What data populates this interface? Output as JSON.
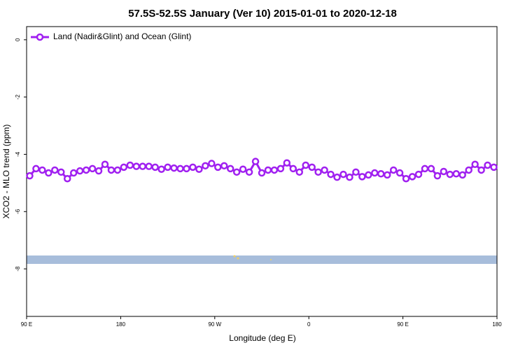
{
  "chart_data": {
    "type": "line",
    "title": "57.5S-52.5S January (Ver 10)   2015-01-01 to 2020-12-18",
    "xlabel": "Longitude (deg E)",
    "ylabel": "XCO2 - MLO trend (ppm)",
    "xlim": [
      90,
      540
    ],
    "ylim": [
      -9.66,
      0.46
    ],
    "xticks": [
      {
        "value": 90,
        "label": "90 E"
      },
      180,
      {
        "value": 270,
        "label": "90 W"
      },
      {
        "value": 360,
        "label": "0"
      },
      {
        "value": 450,
        "label": "90 E"
      },
      {
        "value": 540,
        "label": "180"
      }
    ],
    "yticks": [
      0,
      -2,
      -4,
      -6,
      -8
    ],
    "legend": "top-left",
    "x": [
      93,
      99,
      105,
      111,
      117,
      123,
      129,
      135,
      141,
      147,
      153,
      159,
      165,
      171,
      177,
      183,
      189,
      195,
      201,
      207,
      213,
      219,
      225,
      231,
      237,
      243,
      249,
      255,
      261,
      267,
      273,
      279,
      285,
      291,
      297,
      303,
      309,
      315,
      321,
      327,
      333,
      339,
      345,
      351,
      357,
      363,
      369,
      375,
      381,
      387,
      393,
      399,
      405,
      411,
      417,
      423,
      429,
      435,
      441,
      447,
      453,
      459,
      465,
      471,
      477,
      483,
      489,
      495,
      501,
      507,
      513,
      519,
      525,
      531,
      537
    ],
    "series": [
      {
        "name": "Land (Nadir&Glint) and Ocean (Glint)",
        "color": "#a020f0",
        "values": [
          -4.75,
          -4.5,
          -4.55,
          -4.65,
          -4.55,
          -4.62,
          -4.85,
          -4.65,
          -4.58,
          -4.55,
          -4.5,
          -4.58,
          -4.35,
          -4.55,
          -4.55,
          -4.45,
          -4.38,
          -4.42,
          -4.42,
          -4.42,
          -4.45,
          -4.52,
          -4.45,
          -4.48,
          -4.5,
          -4.5,
          -4.45,
          -4.52,
          -4.4,
          -4.32,
          -4.45,
          -4.4,
          -4.5,
          -4.62,
          -4.52,
          -4.62,
          -4.25,
          -4.65,
          -4.55,
          -4.55,
          -4.5,
          -4.3,
          -4.5,
          -4.62,
          -4.38,
          -4.45,
          -4.62,
          -4.55,
          -4.7,
          -4.8,
          -4.7,
          -4.8,
          -4.62,
          -4.78,
          -4.72,
          -4.65,
          -4.68,
          -4.72,
          -4.55,
          -4.65,
          -4.85,
          -4.78,
          -4.7,
          -4.5,
          -4.5,
          -4.75,
          -4.6,
          -4.7,
          -4.68,
          -4.72,
          -4.55,
          -4.35,
          -4.55,
          -4.38,
          -4.45
        ]
      }
    ]
  }
}
